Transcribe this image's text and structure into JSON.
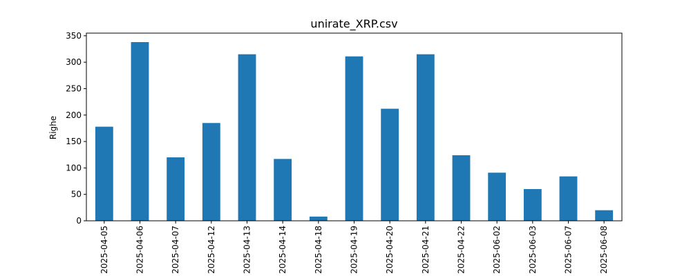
{
  "chart_data": {
    "type": "bar",
    "title": "unirate_XRP.csv",
    "xlabel": "",
    "ylabel": "Righe",
    "ylim": [
      0,
      355
    ],
    "yticks": [
      0,
      50,
      100,
      150,
      200,
      250,
      300,
      350
    ],
    "grid": false,
    "bar_color": "#1f77b4",
    "categories": [
      "2025-04-05",
      "2025-04-06",
      "2025-04-07",
      "2025-04-12",
      "2025-04-13",
      "2025-04-14",
      "2025-04-18",
      "2025-04-19",
      "2025-04-20",
      "2025-04-21",
      "2025-04-22",
      "2025-06-02",
      "2025-06-03",
      "2025-06-07",
      "2025-06-08"
    ],
    "values": [
      178,
      338,
      120,
      185,
      315,
      117,
      8,
      311,
      212,
      315,
      124,
      91,
      60,
      84,
      20
    ]
  }
}
